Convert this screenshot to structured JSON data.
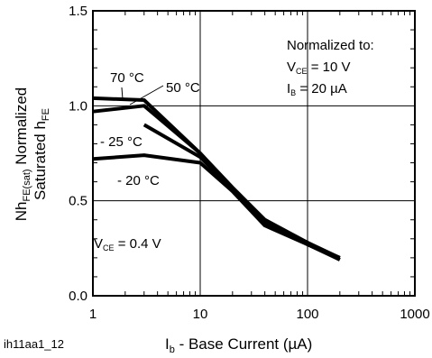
{
  "chart_data": {
    "type": "line",
    "x_scale": "log",
    "xlim": [
      1,
      1000
    ],
    "ylim": [
      0.0,
      1.5
    ],
    "grid": true,
    "x_ticks": [
      "1",
      "10",
      "100",
      "1000"
    ],
    "y_ticks": [
      "0.0",
      "0.5",
      "1.0",
      "1.5"
    ],
    "xlabel": {
      "main": "I",
      "sub": "b",
      "rest": " - Base Current (µA)"
    },
    "ylabel": {
      "line1_a": "Nh",
      "line1_sub": "FE(sat)",
      "line1_b": " Normalized",
      "line2_a": "Saturated h",
      "line2_sub": "FE"
    },
    "note": {
      "title": "Normalized to:",
      "vce_main": "V",
      "vce_sub": "CE",
      "vce_val": " = 10 V",
      "ib_main": "I",
      "ib_sub": "B",
      "ib_val": " = 20 µA"
    },
    "condition": {
      "main": "V",
      "sub": "CE",
      "val": " = 0.4 V"
    },
    "caption": "ih11aa1_12",
    "series": [
      {
        "name": "70 °C",
        "x": [
          1,
          3,
          10,
          20,
          40,
          100,
          200
        ],
        "y": [
          1.04,
          1.03,
          0.75,
          0.57,
          0.4,
          0.28,
          0.19
        ]
      },
      {
        "name": "50 °C",
        "x": [
          1,
          3,
          10,
          20,
          40,
          100,
          200
        ],
        "y": [
          0.97,
          1.0,
          0.75,
          0.56,
          0.4,
          0.27,
          0.19
        ]
      },
      {
        "name": "- 25 °C",
        "x": [
          3,
          10,
          20,
          40,
          100,
          200
        ],
        "y": [
          0.9,
          0.73,
          0.56,
          0.38,
          0.28,
          0.2
        ]
      },
      {
        "name": "- 20 °C",
        "x": [
          1,
          3,
          10,
          20,
          40,
          100,
          200
        ],
        "y": [
          0.72,
          0.74,
          0.7,
          0.55,
          0.37,
          0.27,
          0.2
        ]
      }
    ]
  }
}
